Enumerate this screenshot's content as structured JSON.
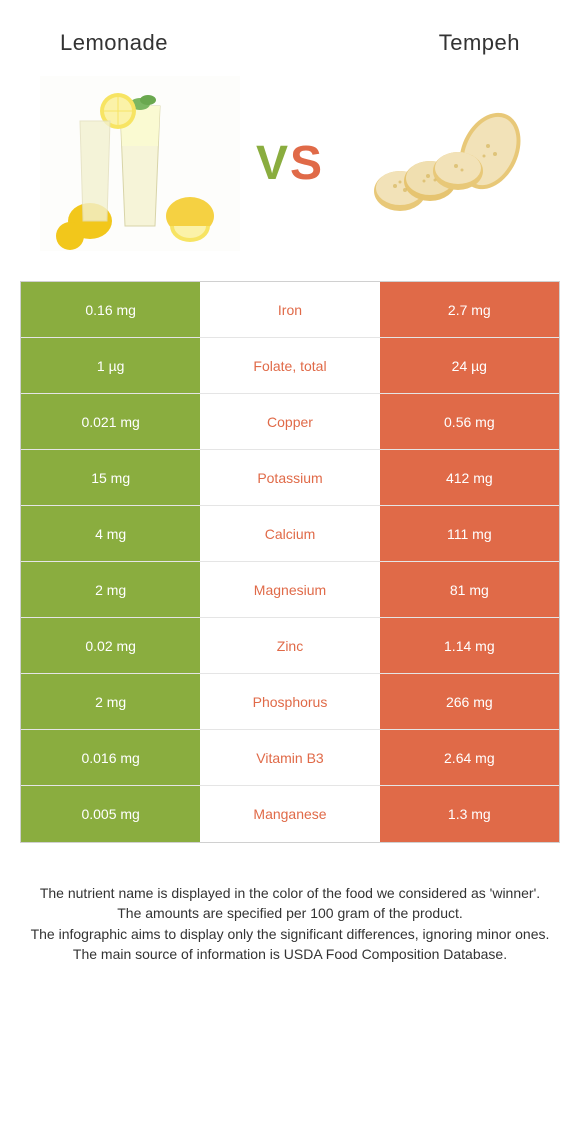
{
  "titles": {
    "left": "Lemonade",
    "right": "Tempeh"
  },
  "vs": {
    "v": "V",
    "s": "S"
  },
  "colors": {
    "green": "#8aad3f",
    "orange": "#e06a48",
    "mid_bg": "#ffffff"
  },
  "rows": [
    {
      "left": "0.16 mg",
      "mid": "Iron",
      "right": "2.7 mg",
      "mid_color": "#e06a48"
    },
    {
      "left": "1 µg",
      "mid": "Folate, total",
      "right": "24 µg",
      "mid_color": "#e06a48"
    },
    {
      "left": "0.021 mg",
      "mid": "Copper",
      "right": "0.56 mg",
      "mid_color": "#e06a48"
    },
    {
      "left": "15 mg",
      "mid": "Potassium",
      "right": "412 mg",
      "mid_color": "#e06a48"
    },
    {
      "left": "4 mg",
      "mid": "Calcium",
      "right": "111 mg",
      "mid_color": "#e06a48"
    },
    {
      "left": "2 mg",
      "mid": "Magnesium",
      "right": "81 mg",
      "mid_color": "#e06a48"
    },
    {
      "left": "0.02 mg",
      "mid": "Zinc",
      "right": "1.14 mg",
      "mid_color": "#e06a48"
    },
    {
      "left": "2 mg",
      "mid": "Phosphorus",
      "right": "266 mg",
      "mid_color": "#e06a48"
    },
    {
      "left": "0.016 mg",
      "mid": "Vitamin B3",
      "right": "2.64 mg",
      "mid_color": "#e06a48"
    },
    {
      "left": "0.005 mg",
      "mid": "Manganese",
      "right": "1.3 mg",
      "mid_color": "#e06a48"
    }
  ],
  "footnote": {
    "l1": "The nutrient name is displayed in the color of the food we considered as 'winner'.",
    "l2": "The amounts are specified per 100 gram of the product.",
    "l3": "The infographic aims to display only the significant differences, ignoring minor ones.",
    "l4": "The main source of information is USDA Food Composition Database."
  }
}
